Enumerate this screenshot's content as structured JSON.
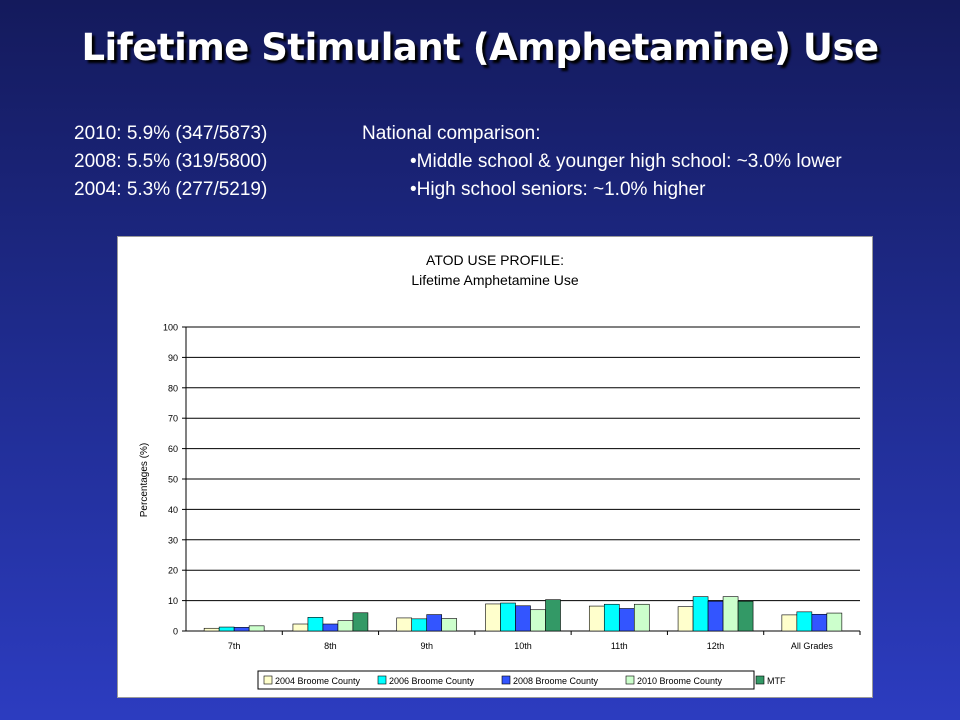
{
  "slide": {
    "title": "Lifetime Stimulant (Amphetamine) Use",
    "stats": [
      "2010: 5.9% (347/5873)",
      "2008: 5.5% (319/5800)",
      "2004: 5.3% (277/5219)"
    ],
    "national": {
      "heading": "National comparison:",
      "bullets": [
        "•Middle school & younger high school: ~3.0% lower",
        "•High school seniors: ~1.0% higher"
      ]
    }
  },
  "chart_data": {
    "type": "bar",
    "title": "ATOD USE PROFILE:",
    "subtitle": "Lifetime Amphetamine Use",
    "xlabel": "",
    "ylabel": "Percentages (%)",
    "ylim": [
      0,
      100
    ],
    "yticks": [
      0,
      10,
      20,
      30,
      40,
      50,
      60,
      70,
      80,
      90,
      100
    ],
    "grid": true,
    "legend_position": "bottom",
    "categories": [
      "7th",
      "8th",
      "9th",
      "10th",
      "11th",
      "12th",
      "All Grades"
    ],
    "series": [
      {
        "name": "2004 Broome County",
        "color": "#ffffcc",
        "values": [
          0.9,
          2.3,
          4.3,
          8.9,
          8.2,
          8.0,
          5.3
        ]
      },
      {
        "name": "2006 Broome County",
        "color": "#00ffff",
        "values": [
          1.3,
          4.5,
          4.0,
          9.2,
          8.8,
          11.3,
          6.3
        ]
      },
      {
        "name": "2008 Broome County",
        "color": "#3355ff",
        "values": [
          1.2,
          2.3,
          5.4,
          8.3,
          7.4,
          9.8,
          5.5
        ]
      },
      {
        "name": "2010 Broome County",
        "color": "#ccffcc",
        "values": [
          1.7,
          3.4,
          4.1,
          7.0,
          8.8,
          11.3,
          5.9
        ]
      },
      {
        "name": "MTF",
        "color": "#339966",
        "values": [
          null,
          6.0,
          null,
          10.3,
          null,
          9.8,
          null
        ]
      }
    ]
  }
}
